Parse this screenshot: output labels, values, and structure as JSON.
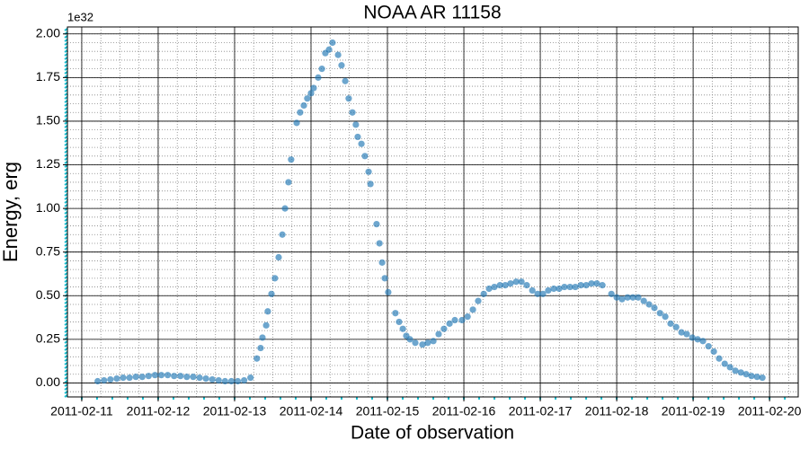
{
  "chart_data": {
    "type": "scatter",
    "title": "NOAA AR 11158",
    "x_label": "Date of observation",
    "y_label": "Energy, erg",
    "y_offset_label": "1e32",
    "color": "#1f77b4",
    "grid": true,
    "minor_grid_divisions": {
      "x": 4,
      "y": 5
    },
    "xlim": [
      "2011-02-10T19:30",
      "2011-02-20T09:00"
    ],
    "xticks": [
      "2011-02-11",
      "2011-02-12",
      "2011-02-13",
      "2011-02-14",
      "2011-02-15",
      "2011-02-16",
      "2011-02-17",
      "2011-02-18",
      "2011-02-19",
      "2011-02-20"
    ],
    "ylim": [
      -0.08,
      2.04
    ],
    "yticks": [
      {
        "value": 0,
        "label": "0.00"
      },
      0.25,
      {
        "value": 0.5,
        "label": "0.50"
      },
      0.75,
      {
        "value": 1,
        "label": "1.00"
      },
      1.25,
      {
        "value": 1.5,
        "label": "1.50"
      },
      1.75,
      {
        "value": 2,
        "label": "2.00"
      }
    ],
    "x": [
      "2011-02-11T05:00",
      "2011-02-11T07:00",
      "2011-02-11T09:00",
      "2011-02-11T11:00",
      "2011-02-11T13:00",
      "2011-02-11T15:00",
      "2011-02-11T17:00",
      "2011-02-11T19:00",
      "2011-02-11T21:00",
      "2011-02-11T23:00",
      "2011-02-12T01:00",
      "2011-02-12T03:00",
      "2011-02-12T05:00",
      "2011-02-12T07:00",
      "2011-02-12T09:00",
      "2011-02-12T11:00",
      "2011-02-12T13:00",
      "2011-02-12T15:00",
      "2011-02-12T17:00",
      "2011-02-12T19:00",
      "2011-02-12T21:00",
      "2011-02-12T23:00",
      "2011-02-13T01:00",
      "2011-02-13T03:00",
      "2011-02-13T05:00",
      "2011-02-13T07:00",
      "2011-02-13T08:10",
      "2011-02-13T08:45",
      "2011-02-13T09:55",
      "2011-02-13T10:25",
      "2011-02-13T11:35",
      "2011-02-13T12:40",
      "2011-02-13T13:50",
      "2011-02-13T15:00",
      "2011-02-13T15:50",
      "2011-02-13T16:55",
      "2011-02-13T17:45",
      "2011-02-13T19:30",
      "2011-02-13T20:35",
      "2011-02-13T21:45",
      "2011-02-13T22:50",
      "2011-02-14T00:00",
      "2011-02-14T00:50",
      "2011-02-14T02:15",
      "2011-02-14T03:25",
      "2011-02-14T04:30",
      "2011-02-14T05:40",
      "2011-02-14T06:45",
      "2011-02-14T08:30",
      "2011-02-14T09:35",
      "2011-02-14T10:45",
      "2011-02-14T11:50",
      "2011-02-14T13:00",
      "2011-02-14T14:05",
      "2011-02-14T14:40",
      "2011-02-14T15:50",
      "2011-02-14T16:55",
      "2011-02-14T18:05",
      "2011-02-14T18:40",
      "2011-02-14T20:35",
      "2011-02-14T21:30",
      "2011-02-14T22:20",
      "2011-02-14T23:10",
      "2011-02-15T00:15",
      "2011-02-15T02:30",
      "2011-02-15T03:40",
      "2011-02-15T04:50",
      "2011-02-15T05:55",
      "2011-02-15T07:05",
      "2011-02-15T08:45",
      "2011-02-15T11:00",
      "2011-02-15T12:40",
      "2011-02-15T14:25",
      "2011-02-15T16:05",
      "2011-02-15T17:45",
      "2011-02-15T19:30",
      "2011-02-15T21:10",
      "2011-02-15T23:25",
      "2011-02-16T01:10",
      "2011-02-16T02:50",
      "2011-02-16T04:30",
      "2011-02-16T06:15",
      "2011-02-16T07:55",
      "2011-02-16T09:35",
      "2011-02-16T11:20",
      "2011-02-16T13:00",
      "2011-02-16T14:40",
      "2011-02-16T16:25",
      "2011-02-16T18:05",
      "2011-02-16T19:45",
      "2011-02-16T21:30",
      "2011-02-16T23:10",
      "2011-02-17T00:50",
      "2011-02-17T02:30",
      "2011-02-17T04:15",
      "2011-02-17T05:55",
      "2011-02-17T07:35",
      "2011-02-17T09:20",
      "2011-02-17T11:00",
      "2011-02-17T12:45",
      "2011-02-17T14:25",
      "2011-02-17T16:05",
      "2011-02-17T17:45",
      "2011-02-17T19:30",
      "2011-02-17T22:20",
      "2011-02-18T00:00",
      "2011-02-18T01:40",
      "2011-02-18T03:25",
      "2011-02-18T05:05",
      "2011-02-18T06:45",
      "2011-02-18T08:30",
      "2011-02-18T10:10",
      "2011-02-18T11:50",
      "2011-02-18T13:35",
      "2011-02-18T15:15",
      "2011-02-18T16:55",
      "2011-02-18T18:40",
      "2011-02-18T20:20",
      "2011-02-18T22:00",
      "2011-02-18T23:45",
      "2011-02-19T01:25",
      "2011-02-19T03:05",
      "2011-02-19T04:50",
      "2011-02-19T06:30",
      "2011-02-19T08:10",
      "2011-02-19T09:55",
      "2011-02-19T11:35",
      "2011-02-19T13:15",
      "2011-02-19T15:00",
      "2011-02-19T16:40",
      "2011-02-19T18:20",
      "2011-02-19T20:05",
      "2011-02-19T21:45"
    ],
    "values": [
      0.01,
      0.015,
      0.02,
      0.025,
      0.03,
      0.03,
      0.035,
      0.035,
      0.04,
      0.045,
      0.045,
      0.045,
      0.04,
      0.04,
      0.035,
      0.035,
      0.03,
      0.025,
      0.02,
      0.015,
      0.01,
      0.01,
      0.01,
      0.015,
      0.03,
      0.14,
      0.2,
      0.26,
      0.33,
      0.41,
      0.51,
      0.6,
      0.72,
      0.85,
      1.0,
      1.15,
      1.28,
      1.49,
      1.55,
      1.59,
      1.63,
      1.66,
      1.69,
      1.75,
      1.8,
      1.89,
      1.91,
      1.95,
      1.88,
      1.82,
      1.73,
      1.63,
      1.55,
      1.48,
      1.41,
      1.37,
      1.3,
      1.21,
      1.14,
      0.91,
      0.8,
      0.69,
      0.6,
      0.52,
      0.4,
      0.35,
      0.31,
      0.27,
      0.25,
      0.23,
      0.22,
      0.23,
      0.24,
      0.28,
      0.31,
      0.34,
      0.36,
      0.36,
      0.38,
      0.42,
      0.47,
      0.51,
      0.54,
      0.55,
      0.56,
      0.56,
      0.57,
      0.58,
      0.58,
      0.56,
      0.53,
      0.51,
      0.51,
      0.53,
      0.54,
      0.54,
      0.55,
      0.55,
      0.55,
      0.56,
      0.56,
      0.57,
      0.57,
      0.56,
      0.51,
      0.49,
      0.48,
      0.49,
      0.49,
      0.49,
      0.47,
      0.45,
      0.43,
      0.4,
      0.38,
      0.34,
      0.32,
      0.29,
      0.28,
      0.26,
      0.25,
      0.24,
      0.21,
      0.18,
      0.14,
      0.11,
      0.09,
      0.07,
      0.06,
      0.05,
      0.04,
      0.035,
      0.03
    ]
  }
}
